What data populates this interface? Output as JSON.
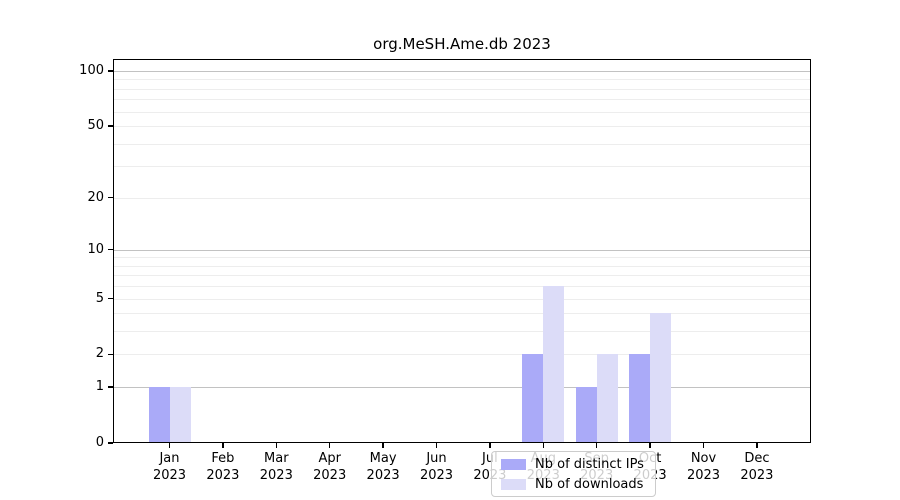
{
  "title": "org.MeSH.Ame.db 2023",
  "chart_data": {
    "type": "bar",
    "title": "org.MeSH.Ame.db 2023",
    "categories": [
      "Jan",
      "Feb",
      "Mar",
      "Apr",
      "May",
      "Jun",
      "Jul",
      "Aug",
      "Sep",
      "Oct",
      "Nov",
      "Dec"
    ],
    "x_tick_label_line2": "2023",
    "series": [
      {
        "name": "Nb of distinct IPs",
        "color": "#aaaaf8",
        "values": [
          1,
          0,
          0,
          0,
          0,
          0,
          0,
          2,
          1,
          2,
          0,
          0
        ]
      },
      {
        "name": "Nb of downloads",
        "color": "#dcdcf8",
        "values": [
          1,
          0,
          0,
          0,
          0,
          0,
          0,
          6,
          2,
          4,
          0,
          0
        ]
      }
    ],
    "y_axis": {
      "scale": "log1p",
      "ticks": [
        0,
        1,
        2,
        5,
        10,
        20,
        50,
        100
      ],
      "ylim": [
        0,
        117
      ]
    },
    "grid": {
      "major": [
        1,
        10,
        100
      ],
      "minor": [
        2,
        3,
        4,
        5,
        6,
        7,
        8,
        9,
        20,
        30,
        40,
        50,
        60,
        70,
        80,
        90
      ]
    },
    "legend_position": "inside-bottom-center"
  }
}
